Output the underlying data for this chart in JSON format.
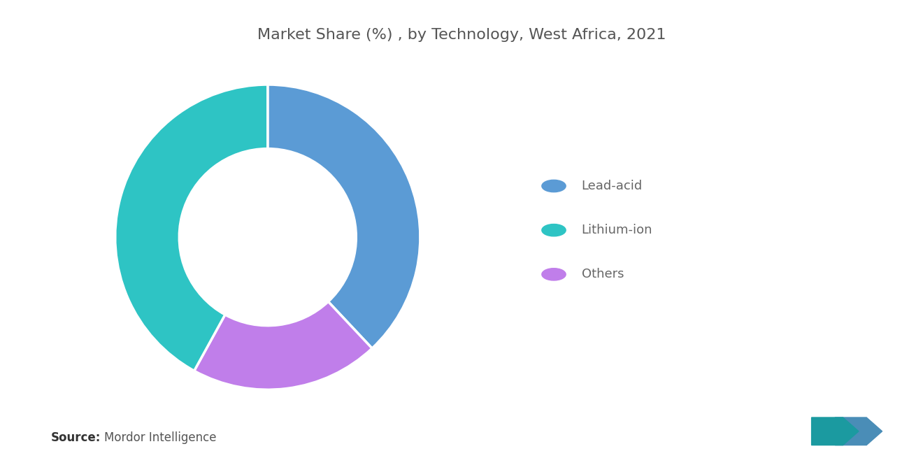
{
  "title": "Market Share (%) , by Technology, West Africa, 2021",
  "segments": [
    "Lead-acid",
    "Others",
    "Lithium-ion"
  ],
  "values": [
    38,
    20,
    42
  ],
  "colors": [
    "#5B9BD5",
    "#C07EEA",
    "#2EC4C4"
  ],
  "legend_labels": [
    "Lead-acid",
    "Lithium-ion",
    "Others"
  ],
  "legend_colors": [
    "#5B9BD5",
    "#2EC4C4",
    "#C07EEA"
  ],
  "source_bold": "Source:",
  "source_text": "Mordor Intelligence",
  "background_color": "#FFFFFF",
  "title_color": "#555555",
  "title_fontsize": 16,
  "legend_fontsize": 13,
  "source_fontsize": 12,
  "donut_width": 0.42,
  "startangle": 90
}
